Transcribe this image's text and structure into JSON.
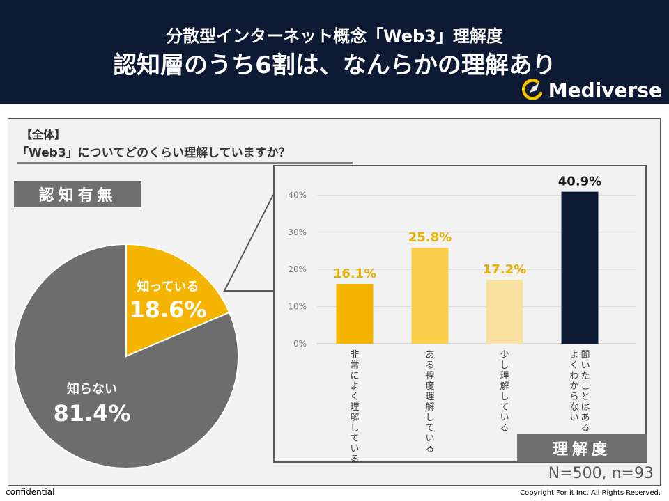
{
  "header": {
    "subtitle": "分散型インターネット概念「Web3」理解度",
    "title": "認知層のうち6割は、なんらかの理解あり",
    "logo_text": "Mediverse"
  },
  "question": {
    "scope": "【全体】",
    "text": "「Web3」についてどのくらい理解していますか？"
  },
  "tags": {
    "awareness": "認知有無",
    "understanding": "理解度"
  },
  "sample": "N=500, n=93",
  "footer": {
    "confidential": "confidential",
    "copyright": "Copyright For it Inc. All Rights Reserved."
  },
  "colors": {
    "header_bg": "#0e1a33",
    "know": "#f5b400",
    "not_know": "#6d6d6d",
    "bar_dark": "#0e1a33",
    "label_gold": "#e8b200"
  },
  "chart_data": [
    {
      "type": "pie",
      "categories": [
        "知っている",
        "知らない"
      ],
      "values": [
        18.6,
        81.4
      ],
      "value_labels": [
        "18.6%",
        "81.4%"
      ]
    },
    {
      "type": "bar",
      "categories": [
        "非常によく理解している",
        "ある程度理解している",
        "少し理解している",
        "聞いたことはあるが、よくわからない"
      ],
      "values": [
        16.1,
        25.8,
        17.2,
        40.9
      ],
      "value_labels": [
        "16.1%",
        "25.8%",
        "17.2%",
        "40.9%"
      ],
      "yticks": [
        "0%",
        "10%",
        "20%",
        "30%",
        "40%"
      ],
      "ylim": [
        0,
        45
      ],
      "grid": true
    }
  ]
}
